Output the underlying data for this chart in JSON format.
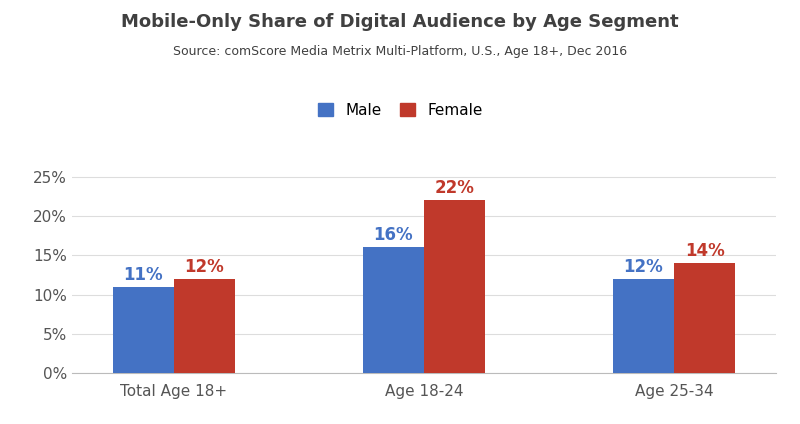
{
  "title": "Mobile-Only Share of Digital Audience by Age Segment",
  "subtitle": "Source: comScore Media Metrix Multi-Platform, U.S., Age 18+, Dec 2016",
  "categories": [
    "Total Age 18+",
    "Age 18-24",
    "Age 25-34"
  ],
  "male_values": [
    0.11,
    0.16,
    0.12
  ],
  "female_values": [
    0.12,
    0.22,
    0.14
  ],
  "male_labels": [
    "11%",
    "16%",
    "12%"
  ],
  "female_labels": [
    "12%",
    "22%",
    "14%"
  ],
  "male_color": "#4472C4",
  "female_color": "#C0392B",
  "label_male_color": "#4472C4",
  "label_female_color": "#C0392B",
  "ylim": [
    0,
    0.27
  ],
  "yticks": [
    0,
    0.05,
    0.1,
    0.15,
    0.2,
    0.25
  ],
  "ytick_labels": [
    "0%",
    "5%",
    "10%",
    "15%",
    "20%",
    "25%"
  ],
  "title_fontsize": 13,
  "subtitle_fontsize": 9,
  "tick_label_fontsize": 11,
  "bar_label_fontsize": 12,
  "legend_fontsize": 11,
  "title_color": "#404040",
  "subtitle_color": "#404040",
  "tick_color": "#555555",
  "background_color": "#FFFFFF",
  "bar_width": 0.33,
  "x_positions": [
    0.0,
    1.35,
    2.7
  ]
}
